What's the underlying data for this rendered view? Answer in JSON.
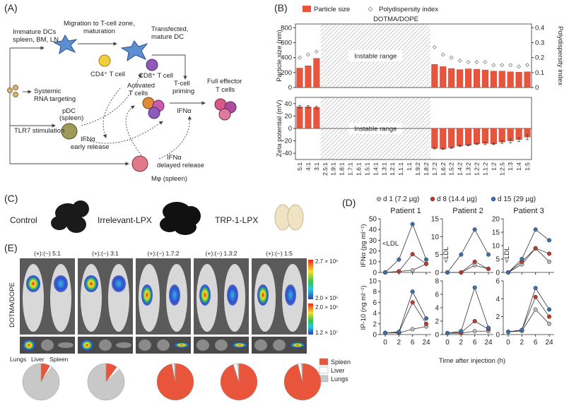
{
  "figure": {
    "panel_labels": [
      "(A)",
      "(B)",
      "(C)",
      "(D)",
      "(E)"
    ],
    "diagram": {
      "labels": [
        "Immature DCs",
        "spleen, BM, LN",
        "Migration to T-cell zone,",
        "maturation",
        "Transfected,",
        "mature DC",
        "CD4⁺ T cell",
        "CD8⁺ T cell",
        "T-cell",
        "priming",
        "Activated",
        "T cells",
        "Full effector",
        "T cells",
        "Systemic",
        "RNA targeting",
        "pDC",
        "(spleen)",
        "TLR7 stimulation",
        "IFNα",
        "early release",
        "IFNα",
        "IFNα",
        "delayed release",
        "Mφ (spleen)"
      ]
    },
    "panel_c": {
      "labels": [
        "Control",
        "Irrelevant-LPX",
        "TRP-1-LPX"
      ]
    },
    "panel_d": {
      "xlabel": "Time after injection (h)"
    },
    "panel_e": {
      "headers": [
        "(+):(−) 5:1",
        "(+):(−) 3:1",
        "(+):(−) 1.7:2",
        "(+):(−) 1.3:2",
        "(+):(−) 1:5"
      ],
      "ylabel": "DOTMA/DOPE",
      "organs": [
        "Lungs",
        "Liver",
        "Spleen"
      ],
      "colorbar_labels": [
        "2.7 × 10⁶",
        "2.0 × 10⁵",
        "2.0 × 10⁵",
        "1.2 × 10⁷"
      ]
    }
  },
  "chart_data": [
    {
      "type": "bar",
      "title": "DOTMA/DOPE",
      "ylabel": "Particle size (nm)",
      "y2label": "Polydispersity index",
      "annotation": "Instable range",
      "ylim": [
        0,
        850
      ],
      "yticks": [
        0,
        200,
        400,
        600,
        800
      ],
      "y2lim": [
        0,
        0.425
      ],
      "y2ticks": [
        0,
        0.1,
        0.2,
        0.3,
        0.4
      ],
      "series": [
        {
          "name": "Particle size",
          "color": "#e8553a",
          "values": [
            260,
            290,
            390,
            null,
            null,
            null,
            null,
            null,
            null,
            null,
            null,
            null,
            null,
            null,
            null,
            null,
            310,
            280,
            255,
            240,
            250,
            245,
            235,
            220,
            220,
            210,
            205,
            210
          ]
        },
        {
          "name": "Polydispersity index",
          "axis": "y2",
          "color": "#999999",
          "values": [
            0.2,
            0.22,
            0.24,
            null,
            null,
            null,
            null,
            null,
            null,
            null,
            null,
            null,
            null,
            null,
            null,
            null,
            0.27,
            0.22,
            0.2,
            0.18,
            0.17,
            0.17,
            0.17,
            0.15,
            0.15,
            0.15,
            0.14,
            0.15
          ]
        }
      ]
    },
    {
      "type": "bar",
      "ylabel": "Zeta potential (mV)",
      "annotation": "Instable range",
      "ylim": [
        -50,
        50
      ],
      "yticks": [
        -40,
        -20,
        0,
        20,
        40
      ],
      "color": "#e8553a",
      "categories": [
        "5:1",
        "4:1",
        "3:1",
        "2.5:1",
        "1.9:1",
        "1.8:1",
        "1.7:1",
        "1.6:1",
        "1.5:1",
        "1.4:1",
        "1.3:1",
        "1.2:1",
        "1.1:1",
        "1:1",
        "1.9:2",
        "1.8:2",
        "1.7:2",
        "1.6:2",
        "1.5:2",
        "1.4:2",
        "1.3:2",
        "1.2:2",
        "1.1:2",
        "1:2",
        "1:2.5",
        "1:3",
        "1:4",
        "1:5"
      ],
      "values": [
        35,
        35,
        34,
        null,
        null,
        null,
        null,
        null,
        null,
        null,
        null,
        null,
        null,
        null,
        null,
        null,
        -32,
        -33,
        -31,
        -28,
        -27,
        -25,
        -24,
        -25,
        -22,
        -20,
        -18,
        -14
      ],
      "errors": [
        2,
        2,
        2,
        null,
        null,
        null,
        null,
        null,
        null,
        null,
        null,
        null,
        null,
        null,
        null,
        null,
        1,
        1,
        1,
        1,
        1,
        1,
        2,
        1,
        2,
        3,
        3,
        4
      ]
    },
    {
      "type": "line",
      "title": "Patient 1",
      "ylabel": "IFNα (pg ml⁻¹)",
      "annotation": "<LDL",
      "ylim": [
        0,
        50
      ],
      "yticks": [
        0,
        10,
        20,
        30,
        40,
        50
      ],
      "series": [
        {
          "name": "d 1 (7.2 µg)",
          "color": "#b8b8b8",
          "values": [
            0,
            1,
            2,
            8
          ]
        },
        {
          "name": "d 8 (14.4 µg)",
          "color": "#c0392b",
          "values": [
            0,
            1,
            17,
            8
          ]
        },
        {
          "name": "d 15 (29 µg)",
          "color": "#3a6fb0",
          "values": [
            0,
            12,
            45,
            12
          ]
        }
      ]
    },
    {
      "type": "line",
      "title": "Patient 2",
      "annotation": "<LDL",
      "ylim": [
        0,
        15
      ],
      "yticks": [
        0,
        5,
        10,
        15
      ],
      "series": [
        {
          "color": "#b8b8b8",
          "values": [
            0,
            0,
            2,
            1
          ]
        },
        {
          "color": "#c0392b",
          "values": [
            0,
            0,
            3,
            1
          ]
        },
        {
          "color": "#3a6fb0",
          "values": [
            0,
            5,
            12,
            5
          ]
        }
      ]
    },
    {
      "type": "line",
      "title": "Patient 3",
      "annotation": "<LDL",
      "ylim": [
        0,
        20
      ],
      "yticks": [
        0,
        5,
        10,
        15,
        20
      ],
      "series": [
        {
          "color": "#b8b8b8",
          "values": [
            0,
            3,
            9,
            4
          ]
        },
        {
          "color": "#c0392b",
          "values": [
            0,
            4,
            9,
            7
          ]
        },
        {
          "color": "#3a6fb0",
          "values": [
            0,
            5,
            16,
            12
          ]
        }
      ]
    },
    {
      "type": "line",
      "ylabel": "IP-10 (ng ml⁻¹)",
      "categories": [
        "0",
        "2",
        "6",
        "24"
      ],
      "ylim": [
        0,
        10
      ],
      "yticks": [
        0,
        2,
        4,
        6,
        8,
        10
      ],
      "series": [
        {
          "color": "#b8b8b8",
          "values": [
            0.3,
            0.3,
            1,
            1.5
          ]
        },
        {
          "color": "#c0392b",
          "values": [
            0.3,
            0.4,
            6,
            2
          ]
        },
        {
          "color": "#3a6fb0",
          "values": [
            0.3,
            0.5,
            8,
            3
          ]
        }
      ]
    },
    {
      "type": "line",
      "categories": [
        "0",
        "2",
        "6",
        "24"
      ],
      "ylim": [
        0,
        8
      ],
      "yticks": [
        0,
        2,
        4,
        6,
        8
      ],
      "series": [
        {
          "color": "#b8b8b8",
          "values": [
            0.2,
            0.2,
            0.5,
            0.5
          ]
        },
        {
          "color": "#c0392b",
          "values": [
            0.2,
            0.3,
            2,
            0.8
          ]
        },
        {
          "color": "#3a6fb0",
          "values": [
            0.2,
            0.5,
            7,
            1
          ]
        }
      ]
    },
    {
      "type": "line",
      "categories": [
        "0",
        "2",
        "6",
        "24"
      ],
      "ylim": [
        0,
        6
      ],
      "yticks": [
        0,
        2,
        4,
        6
      ],
      "series": [
        {
          "color": "#b8b8b8",
          "values": [
            0.3,
            0.4,
            2.8,
            1.2
          ]
        },
        {
          "color": "#c0392b",
          "values": [
            0.3,
            0.5,
            4.2,
            2
          ]
        },
        {
          "color": "#3a6fb0",
          "values": [
            0.3,
            0.5,
            5.2,
            2.8
          ]
        }
      ]
    },
    {
      "type": "pie",
      "categories": [
        "Spleen",
        "Liver",
        "Lungs"
      ],
      "colors": [
        "#e8553a",
        "#ffffff",
        "#c8c8c8"
      ],
      "values": [
        8,
        2,
        90
      ]
    },
    {
      "type": "pie",
      "colors": [
        "#e8553a",
        "#ffffff",
        "#c8c8c8"
      ],
      "values": [
        10,
        3,
        87
      ]
    },
    {
      "type": "pie",
      "colors": [
        "#e8553a",
        "#ffffff",
        "#c8c8c8"
      ],
      "values": [
        97,
        2,
        1
      ]
    },
    {
      "type": "pie",
      "colors": [
        "#e8553a",
        "#ffffff",
        "#c8c8c8"
      ],
      "values": [
        95,
        4,
        1
      ]
    },
    {
      "type": "pie",
      "colors": [
        "#e8553a",
        "#ffffff",
        "#c8c8c8"
      ],
      "values": [
        96,
        3,
        1
      ]
    }
  ]
}
